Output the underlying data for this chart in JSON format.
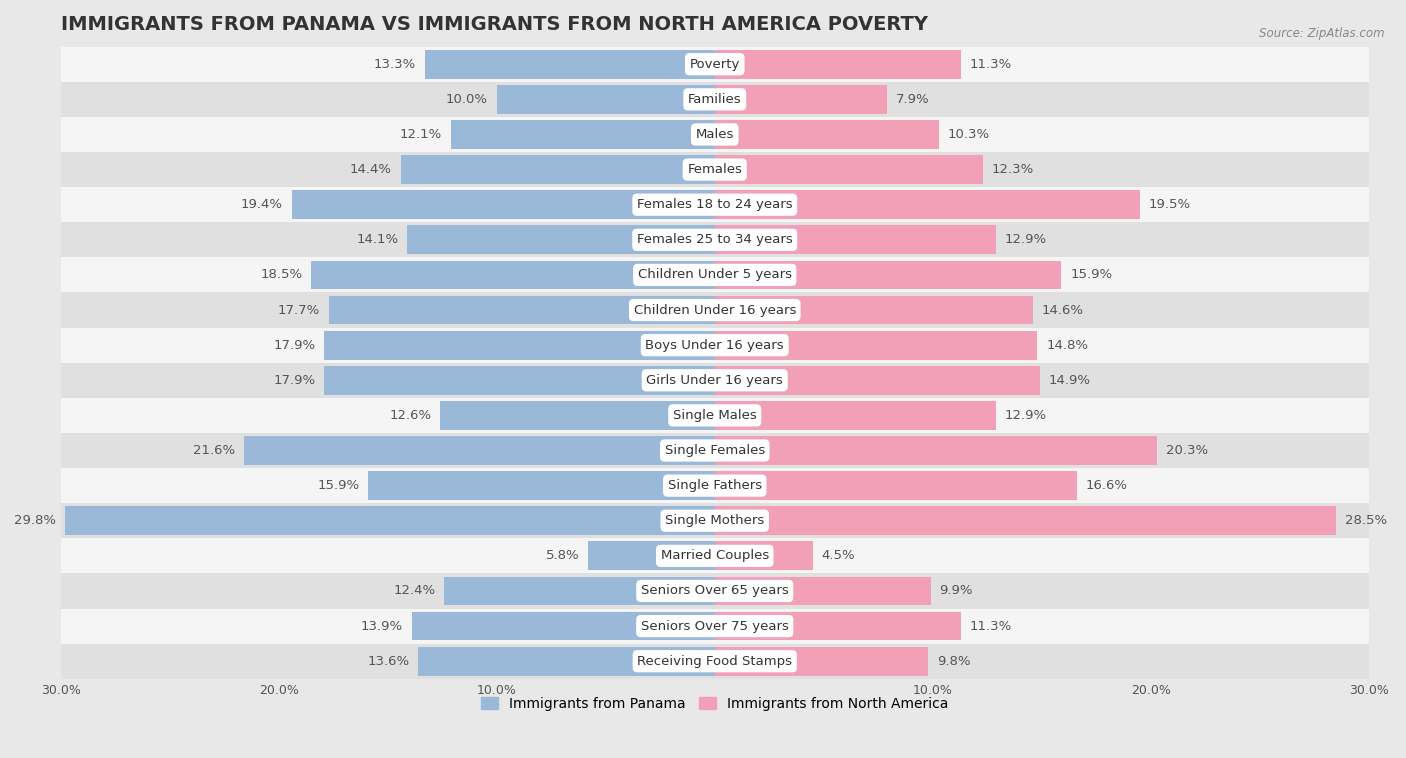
{
  "title": "IMMIGRANTS FROM PANAMA VS IMMIGRANTS FROM NORTH AMERICA POVERTY",
  "source": "Source: ZipAtlas.com",
  "categories": [
    "Poverty",
    "Families",
    "Males",
    "Females",
    "Females 18 to 24 years",
    "Females 25 to 34 years",
    "Children Under 5 years",
    "Children Under 16 years",
    "Boys Under 16 years",
    "Girls Under 16 years",
    "Single Males",
    "Single Females",
    "Single Fathers",
    "Single Mothers",
    "Married Couples",
    "Seniors Over 65 years",
    "Seniors Over 75 years",
    "Receiving Food Stamps"
  ],
  "panama_values": [
    13.3,
    10.0,
    12.1,
    14.4,
    19.4,
    14.1,
    18.5,
    17.7,
    17.9,
    17.9,
    12.6,
    21.6,
    15.9,
    29.8,
    5.8,
    12.4,
    13.9,
    13.6
  ],
  "north_america_values": [
    11.3,
    7.9,
    10.3,
    12.3,
    19.5,
    12.9,
    15.9,
    14.6,
    14.8,
    14.9,
    12.9,
    20.3,
    16.6,
    28.5,
    4.5,
    9.9,
    11.3,
    9.8
  ],
  "panama_color": "#9ab8d8",
  "north_america_color": "#f2a0b8",
  "background_color": "#e8e8e8",
  "row_color_light": "#f5f5f5",
  "row_color_dark": "#e0e0e0",
  "label_color": "#555555",
  "xlim": 30.0,
  "bar_height": 0.82,
  "label_fontsize": 9.5,
  "cat_fontsize": 9.5,
  "title_fontsize": 14,
  "legend_fontsize": 10,
  "tick_fontsize": 9
}
